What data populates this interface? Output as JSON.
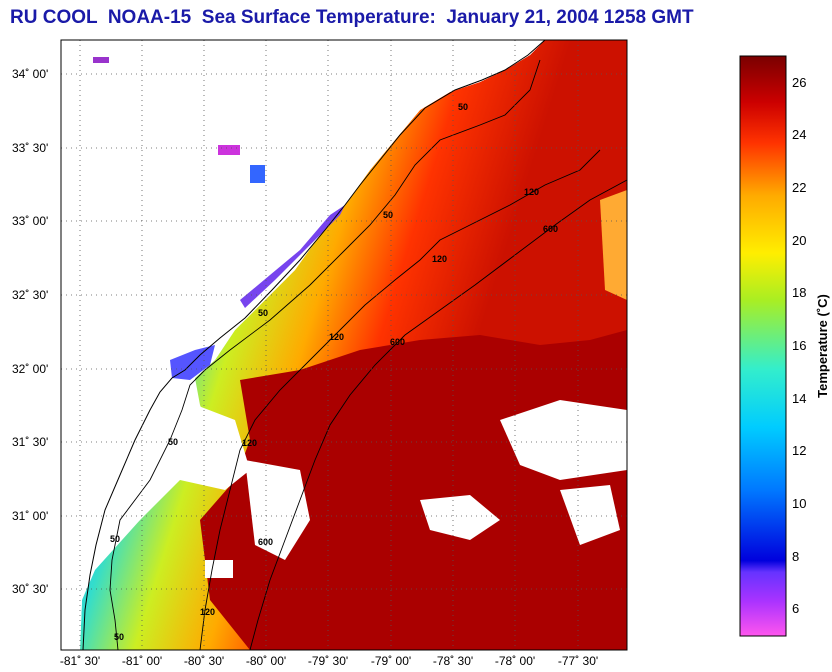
{
  "title": "RU COOL  NOAA-15  Sea Surface Temperature:  January 21, 2004 1258 GMT",
  "map": {
    "lat_ticks": [
      "34˚ 00'",
      "33˚ 30'",
      "33˚ 00'",
      "32˚ 30'",
      "32˚ 00'",
      "31˚ 30'",
      "31˚ 00'",
      "30˚ 30'"
    ],
    "lon_ticks": [
      "-81˚ 30'",
      "-81˚ 00'",
      "-80˚ 30'",
      "-80˚ 00'",
      "-79˚ 30'",
      "-79˚ 00'",
      "-78˚ 30'",
      "-78˚ 00'",
      "-77˚ 30'"
    ],
    "contour_labels": [
      "50",
      "50",
      "50",
      "50",
      "50",
      "50",
      "120",
      "120",
      "120",
      "120",
      "120",
      "600",
      "600",
      "600"
    ],
    "colors": {
      "land": "#ffffff",
      "grid": "#555555",
      "coast": "#000000"
    }
  },
  "colorbar": {
    "label": "Temperature (˚C)",
    "ticks": [
      "26",
      "24",
      "22",
      "20",
      "18",
      "16",
      "14",
      "12",
      "10",
      "8",
      "6"
    ],
    "range": [
      5,
      27
    ],
    "stops": [
      "#ff44dd",
      "#9933ff",
      "#0000ee",
      "#0077ff",
      "#00ccff",
      "#33eecc",
      "#99ee33",
      "#ffee00",
      "#ffaa00",
      "#ff3300",
      "#cc0000",
      "#800000"
    ]
  }
}
